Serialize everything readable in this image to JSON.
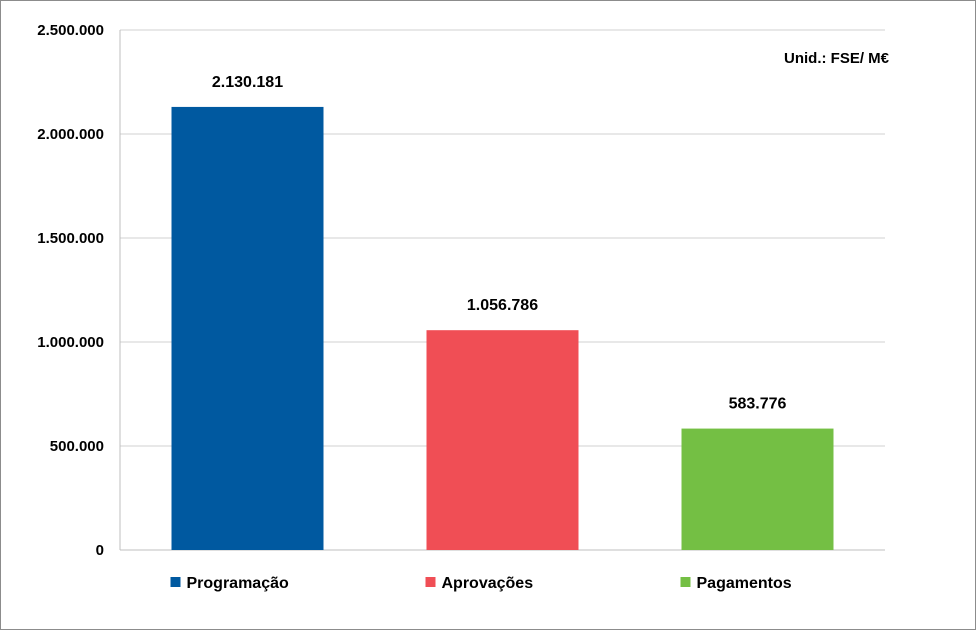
{
  "chart_data": {
    "type": "bar",
    "title": "",
    "xlabel": "",
    "ylabel": "",
    "unit_note": "Unid.:  FSE/ M€",
    "categories": [
      "Programação",
      "Aprovações",
      "Pagamentos"
    ],
    "values": [
      2130181,
      1056786,
      583776
    ],
    "value_labels": [
      "2.130.181",
      "1.056.786",
      "583.776"
    ],
    "colors": [
      "#0059A0",
      "#F04E55",
      "#74BF44"
    ],
    "ylim": [
      0,
      2500000
    ],
    "yticks": [
      0,
      500000,
      1000000,
      1500000,
      2000000,
      2500000
    ],
    "ytick_labels": [
      "0",
      "500.000",
      "1.000.000",
      "1.500.000",
      "2.000.000",
      "2.500.000"
    ],
    "grid": true,
    "legend_position": "bottom",
    "legend": [
      "Programação",
      "Aprovações",
      "Pagamentos"
    ]
  }
}
